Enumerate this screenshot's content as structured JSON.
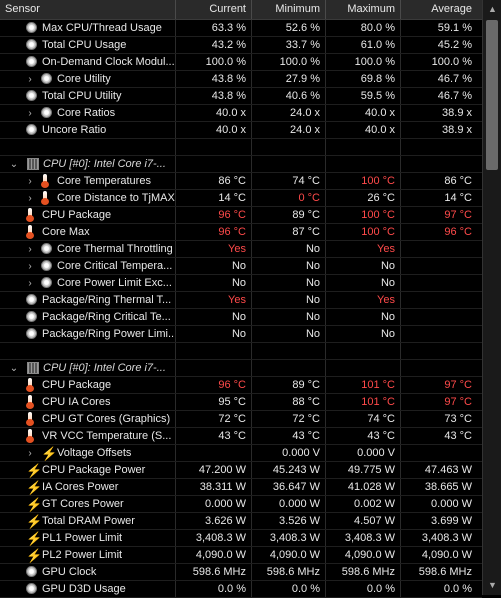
{
  "header": {
    "sensor": "Sensor",
    "current": "Current",
    "minimum": "Minimum",
    "maximum": "Maximum",
    "average": "Average"
  },
  "rows": [
    {
      "type": "row",
      "indent": 1,
      "icon": "clock",
      "name": "Max CPU/Thread Usage",
      "cur": "63.3 %",
      "min": "52.6 %",
      "max": "80.0 %",
      "avg": "59.1 %"
    },
    {
      "type": "row",
      "indent": 1,
      "icon": "clock",
      "name": "Total CPU Usage",
      "cur": "43.2 %",
      "min": "33.7 %",
      "max": "61.0 %",
      "avg": "45.2 %"
    },
    {
      "type": "row",
      "indent": 1,
      "icon": "clock",
      "name": "On-Demand Clock Modul...",
      "cur": "100.0 %",
      "min": "100.0 %",
      "max": "100.0 %",
      "avg": "100.0 %"
    },
    {
      "type": "row",
      "indent": 1,
      "expand": true,
      "icon": "clock",
      "name": "Core Utility",
      "cur": "43.8 %",
      "min": "27.9 %",
      "max": "69.8 %",
      "avg": "46.7 %"
    },
    {
      "type": "row",
      "indent": 1,
      "icon": "clock",
      "name": "Total CPU Utility",
      "cur": "43.8 %",
      "min": "40.6 %",
      "max": "59.5 %",
      "avg": "46.7 %"
    },
    {
      "type": "row",
      "indent": 1,
      "expand": true,
      "icon": "clock",
      "name": "Core Ratios",
      "cur": "40.0 x",
      "min": "24.0 x",
      "max": "40.0 x",
      "avg": "38.9 x"
    },
    {
      "type": "row",
      "indent": 1,
      "icon": "clock",
      "name": "Uncore Ratio",
      "cur": "40.0 x",
      "min": "24.0 x",
      "max": "40.0 x",
      "avg": "38.9 x"
    },
    {
      "type": "blank"
    },
    {
      "type": "group",
      "name": "CPU [#0]: Intel Core i7-..."
    },
    {
      "type": "row",
      "indent": 1,
      "expand": true,
      "icon": "therm",
      "name": "Core Temperatures",
      "cur": "86 °C",
      "min": "74 °C",
      "max": "100 °C",
      "maxRed": true,
      "avg": "86 °C"
    },
    {
      "type": "row",
      "indent": 1,
      "expand": true,
      "icon": "therm",
      "name": "Core Distance to TjMAX",
      "cur": "14 °C",
      "min": "0 °C",
      "minRed": true,
      "max": "26 °C",
      "avg": "14 °C"
    },
    {
      "type": "row",
      "indent": 1,
      "icon": "therm",
      "name": "CPU Package",
      "cur": "96 °C",
      "curRed": true,
      "min": "89 °C",
      "max": "100 °C",
      "maxRed": true,
      "avg": "97 °C",
      "avgRed": true
    },
    {
      "type": "row",
      "indent": 1,
      "icon": "therm",
      "name": "Core Max",
      "cur": "96 °C",
      "curRed": true,
      "min": "87 °C",
      "max": "100 °C",
      "maxRed": true,
      "avg": "96 °C",
      "avgRed": true
    },
    {
      "type": "row",
      "indent": 1,
      "expand": true,
      "icon": "clock",
      "name": "Core Thermal Throttling",
      "cur": "Yes",
      "curRed": true,
      "min": "No",
      "max": "Yes",
      "maxRed": true,
      "avg": ""
    },
    {
      "type": "row",
      "indent": 1,
      "expand": true,
      "icon": "clock",
      "name": "Core Critical Tempera...",
      "cur": "No",
      "min": "No",
      "max": "No",
      "avg": ""
    },
    {
      "type": "row",
      "indent": 1,
      "expand": true,
      "icon": "clock",
      "name": "Core Power Limit Exc...",
      "cur": "No",
      "min": "No",
      "max": "No",
      "avg": ""
    },
    {
      "type": "row",
      "indent": 1,
      "icon": "clock",
      "name": "Package/Ring Thermal T...",
      "cur": "Yes",
      "curRed": true,
      "min": "No",
      "max": "Yes",
      "maxRed": true,
      "avg": ""
    },
    {
      "type": "row",
      "indent": 1,
      "icon": "clock",
      "name": "Package/Ring Critical Te...",
      "cur": "No",
      "min": "No",
      "max": "No",
      "avg": ""
    },
    {
      "type": "row",
      "indent": 1,
      "icon": "clock",
      "name": "Package/Ring Power Limi...",
      "cur": "No",
      "min": "No",
      "max": "No",
      "avg": ""
    },
    {
      "type": "blank"
    },
    {
      "type": "group",
      "name": "CPU [#0]: Intel Core i7-..."
    },
    {
      "type": "row",
      "indent": 1,
      "icon": "therm",
      "name": "CPU Package",
      "cur": "96 °C",
      "curRed": true,
      "min": "89 °C",
      "max": "101 °C",
      "maxRed": true,
      "avg": "97 °C",
      "avgRed": true
    },
    {
      "type": "row",
      "indent": 1,
      "icon": "therm",
      "name": "CPU IA Cores",
      "cur": "95 °C",
      "min": "88 °C",
      "max": "101 °C",
      "maxRed": true,
      "avg": "97 °C",
      "avgRed": true
    },
    {
      "type": "row",
      "indent": 1,
      "icon": "therm",
      "name": "CPU GT Cores (Graphics)",
      "cur": "72 °C",
      "min": "72 °C",
      "max": "74 °C",
      "avg": "73 °C"
    },
    {
      "type": "row",
      "indent": 1,
      "icon": "therm",
      "name": "VR VCC Temperature (S...",
      "cur": "43 °C",
      "min": "43 °C",
      "max": "43 °C",
      "avg": "43 °C"
    },
    {
      "type": "row",
      "indent": 1,
      "expand": true,
      "icon": "bolt",
      "name": "Voltage Offsets",
      "cur": "",
      "min": "0.000 V",
      "max": "0.000 V",
      "avg": ""
    },
    {
      "type": "row",
      "indent": 1,
      "icon": "bolt",
      "name": "CPU Package Power",
      "cur": "47.200 W",
      "min": "45.243 W",
      "max": "49.775 W",
      "avg": "47.463 W"
    },
    {
      "type": "row",
      "indent": 1,
      "icon": "bolt",
      "name": "IA Cores Power",
      "cur": "38.311 W",
      "min": "36.647 W",
      "max": "41.028 W",
      "avg": "38.665 W"
    },
    {
      "type": "row",
      "indent": 1,
      "icon": "bolt",
      "name": "GT Cores Power",
      "cur": "0.000 W",
      "min": "0.000 W",
      "max": "0.002 W",
      "avg": "0.000 W"
    },
    {
      "type": "row",
      "indent": 1,
      "icon": "bolt",
      "name": "Total DRAM Power",
      "cur": "3.626 W",
      "min": "3.526 W",
      "max": "4.507 W",
      "avg": "3.699 W"
    },
    {
      "type": "row",
      "indent": 1,
      "icon": "bolt",
      "name": "PL1 Power Limit",
      "cur": "3,408.3 W",
      "min": "3,408.3 W",
      "max": "3,408.3 W",
      "avg": "3,408.3 W"
    },
    {
      "type": "row",
      "indent": 1,
      "icon": "bolt",
      "name": "PL2 Power Limit",
      "cur": "4,090.0 W",
      "min": "4,090.0 W",
      "max": "4,090.0 W",
      "avg": "4,090.0 W"
    },
    {
      "type": "row",
      "indent": 1,
      "icon": "clock",
      "name": "GPU Clock",
      "cur": "598.6 MHz",
      "min": "598.6 MHz",
      "max": "598.6 MHz",
      "avg": "598.6 MHz"
    },
    {
      "type": "row",
      "indent": 1,
      "icon": "clock",
      "name": "GPU D3D Usage",
      "cur": "0.0 %",
      "min": "0.0 %",
      "max": "0.0 %",
      "avg": "0.0 %"
    }
  ],
  "icons": {
    "clock": "clock-icon",
    "therm": "thermometer-icon",
    "bolt": "lightning-bolt-icon",
    "chip": "cpu-chip-icon",
    "expand": "chevron-right-icon",
    "collapse": "chevron-down-icon"
  },
  "colors": {
    "alert": "#ff4a4a",
    "bolt": "#ffd400",
    "background": "#000000"
  }
}
